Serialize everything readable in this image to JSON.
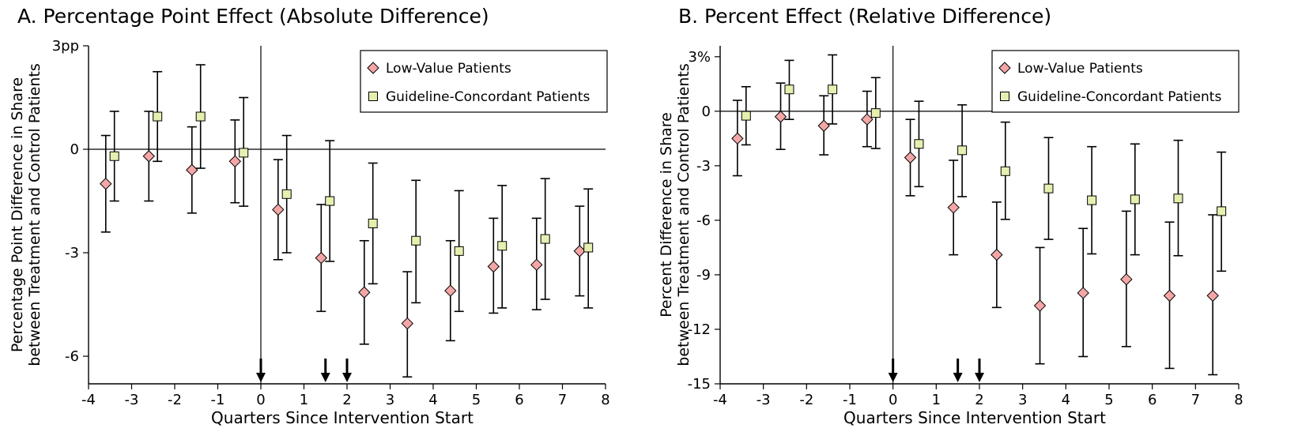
{
  "chart_data": [
    {
      "panel": "A",
      "type": "scatter",
      "title": "A. Percentage Point Effect (Absolute Difference)",
      "xlabel": "Quarters Since Intervention Start",
      "ylabel_lines": [
        "Percentage Point Difference in Share",
        "between Treatment and Control Patients"
      ],
      "xlim": [
        -4,
        8
      ],
      "ylim": [
        -6.8,
        3
      ],
      "x_ticks": [
        -4,
        -3,
        -2,
        -1,
        0,
        1,
        2,
        3,
        4,
        5,
        6,
        7,
        8
      ],
      "x_tick_labels": [
        "-4",
        "-3",
        "-2",
        "-1",
        "0",
        "1",
        "2",
        "3",
        "4",
        "5",
        "6",
        "7",
        "8"
      ],
      "y_ticks": [
        3,
        0,
        -3,
        -6
      ],
      "y_tick_labels": [
        "3pp",
        "0",
        "-3",
        "-6"
      ],
      "vline_x": 0,
      "hline_y": 0,
      "arrows_x": [
        0,
        1.5,
        2
      ],
      "legend_position": "top-right",
      "series": [
        {
          "name": "Low-Value Patients",
          "marker": "diamond",
          "color": "#f4a6a6",
          "x": [
            -3.6,
            -2.6,
            -1.6,
            -0.6,
            0.4,
            1.4,
            2.4,
            3.4,
            4.4,
            5.4,
            6.4,
            7.4
          ],
          "y": [
            -1.0,
            -0.2,
            -0.6,
            -0.35,
            -1.75,
            -3.15,
            -4.15,
            -5.05,
            -4.1,
            -3.4,
            -3.35,
            -2.95
          ],
          "ci_low": [
            -2.4,
            -1.5,
            -1.85,
            -1.55,
            -3.2,
            -4.7,
            -5.65,
            -6.6,
            -5.55,
            -4.75,
            -4.65,
            -4.25
          ],
          "ci_high": [
            0.4,
            1.1,
            0.65,
            0.85,
            -0.3,
            -1.6,
            -2.65,
            -3.55,
            -2.65,
            -2.0,
            -2.0,
            -1.65
          ]
        },
        {
          "name": "Guideline-Concordant Patients",
          "marker": "square",
          "color": "#e7efb0",
          "x": [
            -3.4,
            -2.4,
            -1.4,
            -0.4,
            0.6,
            1.6,
            2.6,
            3.6,
            4.6,
            5.6,
            6.6,
            7.6
          ],
          "y": [
            -0.2,
            0.95,
            0.95,
            -0.1,
            -1.3,
            -1.5,
            -2.15,
            -2.65,
            -2.95,
            -2.8,
            -2.6,
            -2.85
          ],
          "ci_low": [
            -1.5,
            -0.35,
            -0.55,
            -1.65,
            -3.0,
            -3.25,
            -3.9,
            -4.45,
            -4.7,
            -4.6,
            -4.35,
            -4.6
          ],
          "ci_high": [
            1.1,
            2.25,
            2.45,
            1.5,
            0.4,
            0.25,
            -0.4,
            -0.9,
            -1.2,
            -1.05,
            -0.85,
            -1.15
          ]
        }
      ]
    },
    {
      "panel": "B",
      "type": "scatter",
      "title": "B. Percent Effect (Relative Difference)",
      "xlabel": "Quarters Since Intervention Start",
      "ylabel_lines": [
        "Percent Difference in Share",
        "between Treatment and Control Patients"
      ],
      "xlim": [
        -4,
        8
      ],
      "ylim": [
        -15,
        3.6
      ],
      "x_ticks": [
        -4,
        -3,
        -2,
        -1,
        0,
        1,
        2,
        3,
        4,
        5,
        6,
        7,
        8
      ],
      "x_tick_labels": [
        "-4",
        "-3",
        "-2",
        "-1",
        "0",
        "1",
        "2",
        "3",
        "4",
        "5",
        "6",
        "7",
        "8"
      ],
      "y_ticks": [
        3,
        0,
        -3,
        -6,
        -9,
        -12,
        -15
      ],
      "y_tick_labels": [
        "3%",
        "0",
        "-3",
        "-6",
        "-9",
        "-12",
        "-15"
      ],
      "vline_x": 0,
      "hline_y": 0,
      "arrows_x": [
        0,
        1.5,
        2
      ],
      "legend_position": "top-right",
      "series": [
        {
          "name": "Low-Value Patients",
          "marker": "diamond",
          "color": "#f4a6a6",
          "x": [
            -3.6,
            -2.6,
            -1.6,
            -0.6,
            0.4,
            1.4,
            2.4,
            3.4,
            4.4,
            5.4,
            6.4,
            7.4
          ],
          "y": [
            -1.5,
            -0.3,
            -0.8,
            -0.45,
            -2.55,
            -5.3,
            -7.9,
            -10.7,
            -10.0,
            -9.25,
            -10.15,
            -10.15
          ],
          "ci_low": [
            -3.55,
            -2.1,
            -2.4,
            -1.95,
            -4.65,
            -7.9,
            -10.8,
            -13.9,
            -13.5,
            -12.95,
            -14.15,
            -14.5
          ],
          "ci_high": [
            0.6,
            1.55,
            0.85,
            1.1,
            -0.45,
            -2.7,
            -5.0,
            -7.5,
            -6.45,
            -5.5,
            -6.1,
            -5.7
          ]
        },
        {
          "name": "Guideline-Concordant Patients",
          "marker": "square",
          "color": "#e7efb0",
          "x": [
            -3.4,
            -2.4,
            -1.4,
            -0.4,
            0.6,
            1.6,
            2.6,
            3.6,
            4.6,
            5.6,
            6.6,
            7.6
          ],
          "y": [
            -0.25,
            1.2,
            1.2,
            -0.1,
            -1.8,
            -2.15,
            -3.3,
            -4.25,
            -4.9,
            -4.85,
            -4.8,
            -5.5
          ],
          "ci_low": [
            -1.85,
            -0.45,
            -0.7,
            -2.05,
            -4.15,
            -4.7,
            -5.95,
            -7.05,
            -7.85,
            -7.9,
            -7.95,
            -8.8
          ],
          "ci_high": [
            1.35,
            2.8,
            3.1,
            1.85,
            0.55,
            0.35,
            -0.6,
            -1.45,
            -1.95,
            -1.8,
            -1.6,
            -2.25
          ]
        }
      ]
    }
  ]
}
